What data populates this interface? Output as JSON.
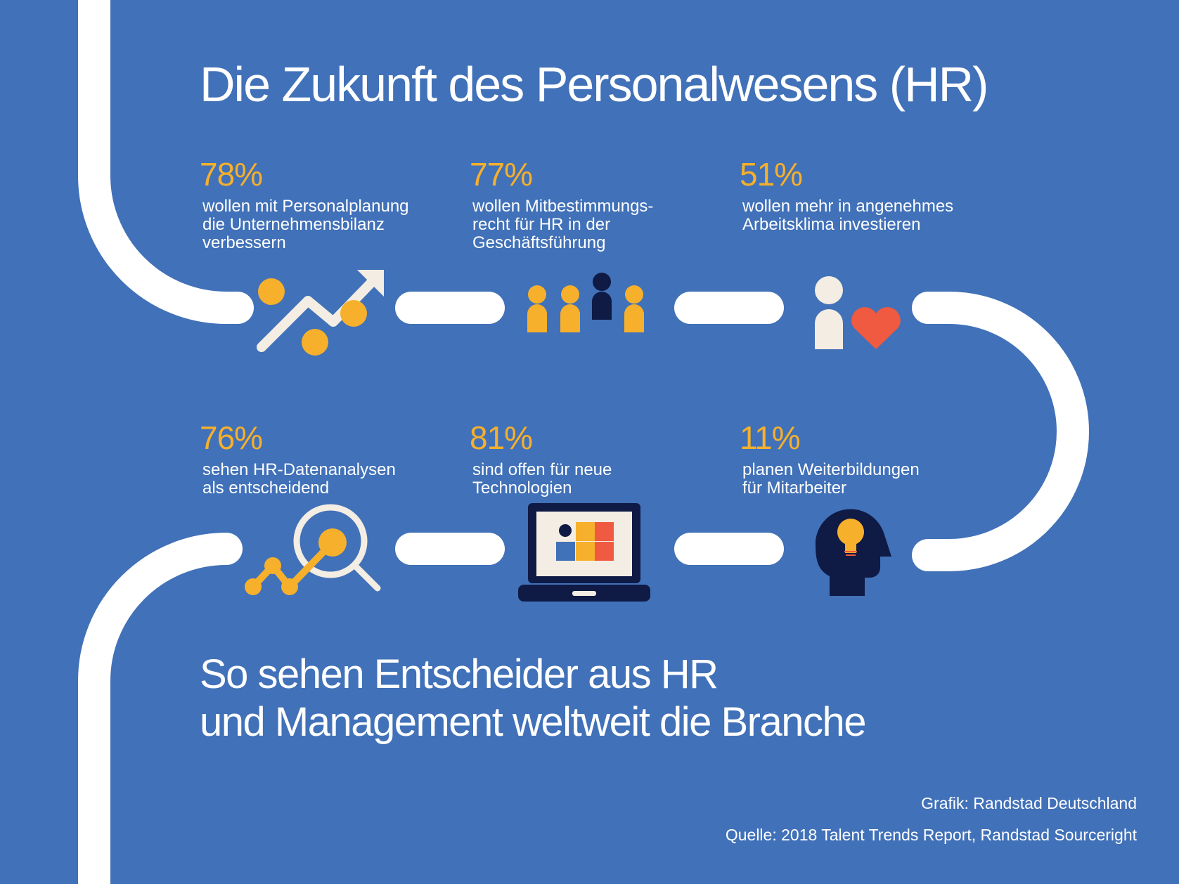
{
  "title": "Die Zukunft des Personalwesens (HR)",
  "stats": [
    {
      "percent": "78%",
      "text": "wollen mit Personalplanung\ndie Unternehmensbilanz\nverbessern",
      "icon": "trend-arrow-icon"
    },
    {
      "percent": "77%",
      "text": "wollen Mitbestimmungs-\nrecht für HR in der\nGeschäftsführung",
      "icon": "people-group-icon"
    },
    {
      "percent": "51%",
      "text": "wollen mehr in angenehmes\nArbeitsklima investieren",
      "icon": "person-heart-icon"
    },
    {
      "percent": "76%",
      "text": "sehen HR-Datenanalysen\nals entscheidend",
      "icon": "data-magnifier-icon"
    },
    {
      "percent": "81%",
      "text": "sind offen für neue\nTechnologien",
      "icon": "laptop-icon"
    },
    {
      "percent": "11%",
      "text": "planen Weiterbildungen\nfür Mitarbeiter",
      "icon": "head-lightbulb-icon"
    }
  ],
  "subtitle": "So sehen Entscheider aus HR\nund Management weltweit die Branche",
  "credit_graphic": "Grafik: Randstad Deutschland",
  "credit_source": "Quelle: 2018 Talent Trends Report, Randstad Sourceright",
  "colors": {
    "background": "#4171b8",
    "accent": "#f7b02b",
    "dark": "#0f1a45",
    "heart": "#ef5a40",
    "path": "#ffffff"
  }
}
